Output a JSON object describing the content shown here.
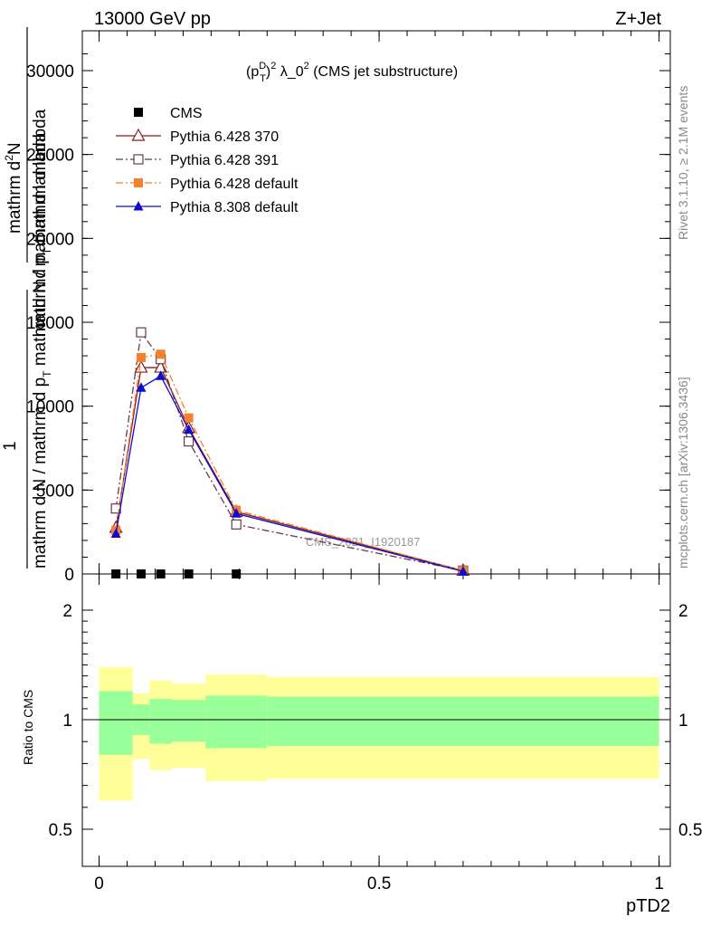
{
  "header": {
    "left": "13000 GeV pp",
    "right": "Z+Jet"
  },
  "title_main": "(p",
  "title_sup1": "D",
  "title_sub1": "T",
  "title_mid": ")",
  "title_sup2": "2",
  "title_rest": " λ_0",
  "title_sup3": "2",
  "title_tail": " (CMS jet substructure)",
  "side_labels": {
    "rivet": "Rivet 3.1.10, ≥ 2.1M events",
    "mcplots": "mcplots.cern.ch [arXiv:1306.3436]"
  },
  "watermark": "CMS_2021_I1920187",
  "ylabel_top": {
    "numerator1": "mathrm d",
    "numerator_sup": "2",
    "numerator2": "N",
    "denominator": "mathrmd p",
    "denominator_sub": "T",
    "denominator2": " mathrm d lambda",
    "lower_1": "1",
    "lower_frac": "mathrm d N / mathrm d p",
    "lower_frac_sub": "T",
    "lower_frac2": " mathrmd N / mathrm d lambda"
  },
  "ylabel_ratio": "Ratio to CMS",
  "xlabel": "pTD2",
  "legend": [
    {
      "label": "CMS",
      "color": "#000000",
      "marker": "square-filled",
      "line": "none"
    },
    {
      "label": "Pythia 6.428 370",
      "color": "#8b1a1a",
      "marker": "triangle-open",
      "line": "solid"
    },
    {
      "label": "Pythia 6.428 391",
      "color": "#6b3a46",
      "marker": "square-open",
      "line": "dashdot"
    },
    {
      "label": "Pythia 6.428 default",
      "color": "#f6802e",
      "marker": "square-filled",
      "line": "dashdot"
    },
    {
      "label": "Pythia 8.308 default",
      "color": "#0d0dd0",
      "marker": "triangle-filled",
      "line": "solid"
    }
  ],
  "chart_data": {
    "type": "line",
    "xlim": [
      -0.03,
      1.02
    ],
    "ylim_main": [
      0,
      32000
    ],
    "ylim_ratio": [
      0.35,
      2.3
    ],
    "x_ticks": [
      "0",
      "0.5",
      "1"
    ],
    "y_ticks_main": [
      "0",
      "5000",
      "10000",
      "15000",
      "20000",
      "25000",
      "30000"
    ],
    "y_ticks_ratio": [
      "0.5",
      "1",
      "2"
    ],
    "x_tick_values": [
      0,
      0.5,
      1
    ],
    "y_tick_values_main": [
      0,
      5000,
      10000,
      15000,
      20000,
      25000,
      30000
    ],
    "y_tick_values_ratio": [
      0.5,
      1,
      2
    ],
    "cms": {
      "x": [
        0.03,
        0.075,
        0.11,
        0.16,
        0.245
      ],
      "y": [
        0,
        0,
        0,
        0,
        0
      ]
    },
    "series": [
      {
        "name": "Pythia 6.428 370",
        "x": [
          0.03,
          0.075,
          0.11,
          0.16,
          0.245,
          0.65
        ],
        "y": [
          2750,
          12300,
          12300,
          8700,
          3700,
          200
        ]
      },
      {
        "name": "Pythia 6.428 391",
        "x": [
          0.03,
          0.075,
          0.11,
          0.16,
          0.245,
          0.65
        ],
        "y": [
          3900,
          14400,
          12800,
          7900,
          2950,
          200
        ]
      },
      {
        "name": "Pythia 6.428 default",
        "x": [
          0.03,
          0.075,
          0.11,
          0.16,
          0.245,
          0.65
        ],
        "y": [
          2600,
          12900,
          13100,
          9300,
          3800,
          200
        ]
      },
      {
        "name": "Pythia 8.308 default",
        "x": [
          0.03,
          0.075,
          0.11,
          0.16,
          0.245,
          0.65
        ],
        "y": [
          2400,
          11100,
          11800,
          8600,
          3600,
          150
        ]
      }
    ],
    "ratio_bands": {
      "edges": [
        0.0,
        0.06,
        0.09,
        0.13,
        0.19,
        0.3,
        1.0
      ],
      "inner_low": [
        0.84,
        0.93,
        0.89,
        0.9,
        0.87,
        0.88
      ],
      "inner_high": [
        1.26,
        1.14,
        1.19,
        1.18,
        1.22,
        1.21
      ],
      "outer_low": [
        0.63,
        0.82,
        0.77,
        0.78,
        0.72,
        0.73
      ],
      "outer_high": [
        1.48,
        1.24,
        1.36,
        1.33,
        1.41,
        1.39
      ]
    }
  }
}
